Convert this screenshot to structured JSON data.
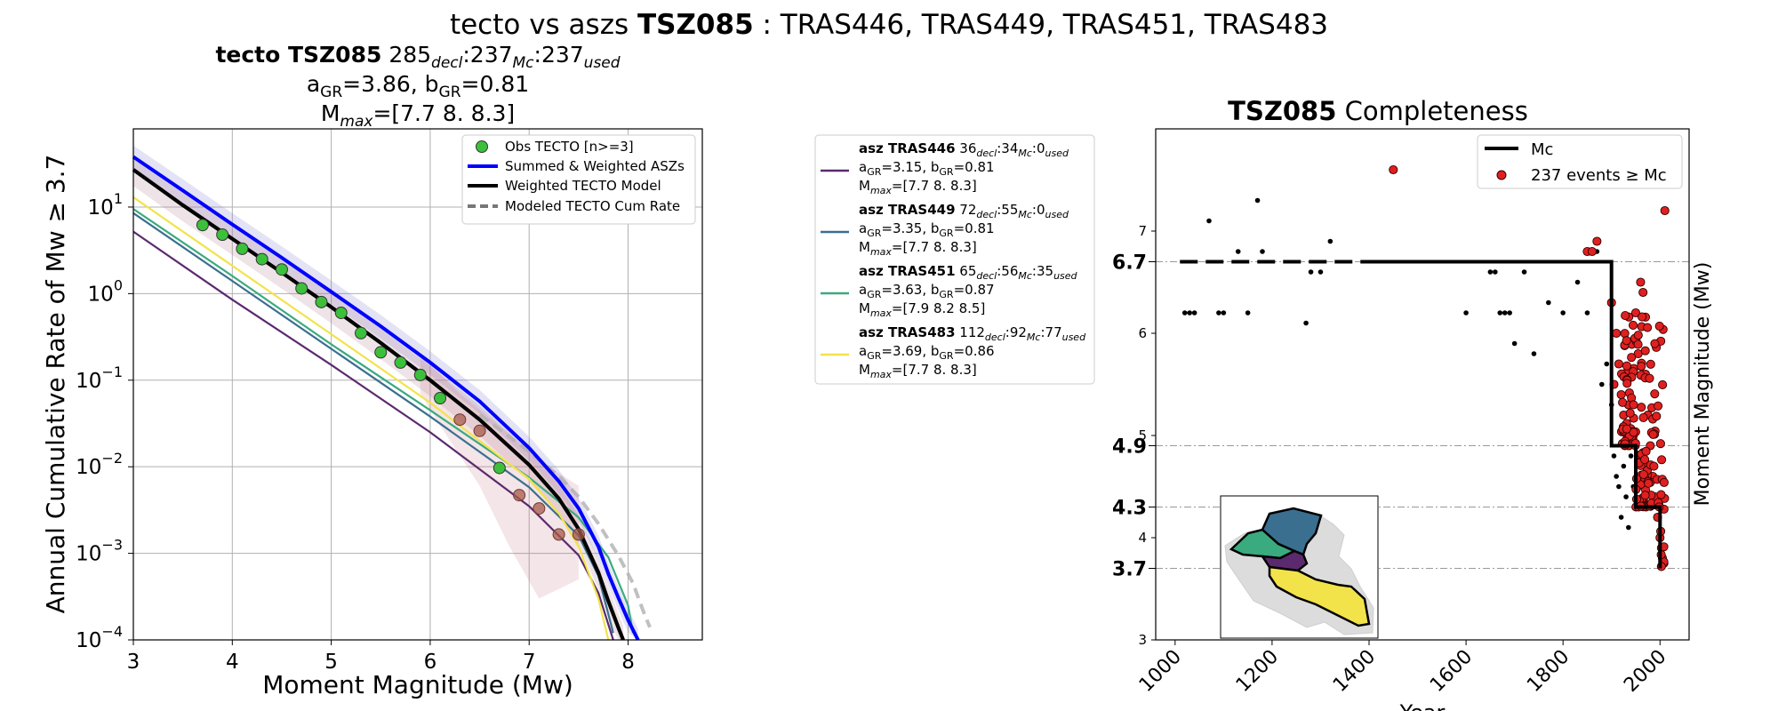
{
  "figure": {
    "title_prefix": "tecto vs aszs ",
    "title_zone": "TSZ085",
    "title_suffix": " : TRAS446, TRAS449, TRAS451, TRAS483"
  },
  "colors": {
    "obs": "#3cc03c",
    "summed": "#0000ff",
    "weighted": "#000000",
    "modeled": "#b0b0b0",
    "TRAS446": "#5b2a6e",
    "TRAS449": "#3a6f8f",
    "TRAS451": "#3aaa7f",
    "TRAS483": "#f2e34a",
    "events": "#e02020"
  },
  "chart_data": [
    {
      "type": "line",
      "title_lines": {
        "l1_bold": "tecto TSZ085",
        "l1_n": "285",
        "l1_s1": "decl",
        "l1_m": ":237",
        "l1_s2": "Mc",
        "l1_m2": ":237",
        "l1_s3": "used",
        "l2_a": "a",
        "l2_asub": "GR",
        "l2_aval": "=3.86,  b",
        "l2_bsub": "GR",
        "l2_bval": "=0.81",
        "l3_m": "M",
        "l3_msub": "max",
        "l3_val": "=[7.7 8.  8.3]"
      },
      "xlabel": "Moment Magnitude (Mw)",
      "ylabel": "Annual Cumulative Rate of Mw  ≥  3.7",
      "xlim": [
        3,
        8.75
      ],
      "ylim": [
        0.0001,
        80
      ],
      "yscale": "log",
      "xticks": [
        "3",
        "4",
        "5",
        "6",
        "7",
        "8"
      ],
      "yticks": [
        {
          "base": "10",
          "exp": "1",
          "v": 10
        },
        {
          "base": "10",
          "exp": "0",
          "v": 1
        },
        {
          "base": "10",
          "exp": "−1",
          "v": 0.1
        },
        {
          "base": "10",
          "exp": "−2",
          "v": 0.01
        },
        {
          "base": "10",
          "exp": "−3",
          "v": 0.001
        },
        {
          "base": "10",
          "exp": "−4",
          "v": 0.0001
        }
      ],
      "grid": true,
      "legend": {
        "placement": "top-right",
        "entries": [
          "Obs TECTO [n>=3]",
          "Summed & Weighted ASZs",
          "Weighted TECTO Model",
          "Modeled TECTO Cum Rate"
        ]
      },
      "observed_green": {
        "x": [
          3.7,
          3.9,
          4.1,
          4.3,
          4.5,
          4.7,
          4.9,
          5.1,
          5.3,
          5.5,
          5.7,
          5.9,
          6.1,
          6.7
        ],
        "y": [
          6.2,
          4.8,
          3.3,
          2.5,
          1.9,
          1.15,
          0.8,
          0.6,
          0.35,
          0.21,
          0.16,
          0.115,
          0.062,
          0.0097
        ]
      },
      "observed_brown": {
        "x": [
          6.3,
          6.5,
          6.9,
          7.1,
          7.3,
          7.5
        ],
        "y": [
          0.035,
          0.026,
          0.0047,
          0.0033,
          0.00165,
          0.00165
        ]
      },
      "series": [
        {
          "name": "Summed & Weighted ASZs",
          "key": "summed",
          "x": [
            3.0,
            3.5,
            4.0,
            4.5,
            5.0,
            5.5,
            6.0,
            6.5,
            7.0,
            7.3,
            7.5,
            7.7,
            7.8,
            7.9,
            8.0,
            8.1
          ],
          "y": [
            38,
            15.5,
            6.3,
            2.6,
            1.05,
            0.42,
            0.16,
            0.057,
            0.0165,
            0.0068,
            0.0033,
            0.0012,
            0.00058,
            0.00031,
            0.00017,
            0.0001
          ]
        },
        {
          "name": "Weighted TECTO Model",
          "key": "weighted",
          "x": [
            3.0,
            3.5,
            4.0,
            4.5,
            5.0,
            5.5,
            6.0,
            6.5,
            7.0,
            7.3,
            7.5,
            7.7,
            7.8,
            7.9,
            7.95
          ],
          "y": [
            27,
            10.5,
            4.3,
            1.75,
            0.7,
            0.27,
            0.1,
            0.035,
            0.0105,
            0.0043,
            0.0019,
            0.0006,
            0.00028,
            0.00014,
            0.0001
          ]
        },
        {
          "name": "Modeled TECTO Cum Rate",
          "key": "modeled",
          "x": [
            6.5,
            7.0,
            7.3,
            7.5,
            7.7,
            7.9,
            8.05,
            8.15,
            8.22
          ],
          "y": [
            0.04,
            0.015,
            0.0078,
            0.0045,
            0.0022,
            0.00095,
            0.00045,
            0.00022,
            0.00014
          ]
        },
        {
          "name": "TRAS446",
          "key": "TRAS446",
          "x": [
            3.0,
            4.0,
            5.0,
            6.0,
            7.0,
            7.5,
            7.7,
            7.85
          ],
          "y": [
            5.2,
            0.85,
            0.15,
            0.025,
            0.0035,
            0.00095,
            0.00035,
            0.0001
          ]
        },
        {
          "name": "TRAS449",
          "key": "TRAS449",
          "x": [
            3.0,
            4.0,
            5.0,
            6.0,
            7.0,
            7.5,
            7.7,
            7.85
          ],
          "y": [
            8.5,
            1.4,
            0.23,
            0.038,
            0.0058,
            0.0016,
            0.00055,
            0.00012
          ]
        },
        {
          "name": "TRAS451",
          "key": "TRAS451",
          "x": [
            3.0,
            4.0,
            5.0,
            6.0,
            7.0,
            7.5,
            7.8,
            8.0,
            8.05
          ],
          "y": [
            9.5,
            1.6,
            0.26,
            0.045,
            0.0075,
            0.0026,
            0.0009,
            0.00025,
            0.00012
          ]
        },
        {
          "name": "TRAS483",
          "key": "TRAS483",
          "x": [
            3.0,
            4.0,
            5.0,
            6.0,
            7.0,
            7.3,
            7.5,
            7.7,
            7.8
          ],
          "y": [
            13,
            2.1,
            0.34,
            0.055,
            0.0072,
            0.0029,
            0.0012,
            0.0003,
            0.0001
          ]
        }
      ]
    },
    {
      "type": "scatter",
      "title_bold": "TSZ085",
      "title_rest": " Completeness",
      "xlabel": "Year",
      "ylabel": "Moment Magnitude (Mw)",
      "xlim": [
        960,
        2060
      ],
      "ylim": [
        3,
        8.0
      ],
      "xticks": [
        "1000",
        "1200",
        "1400",
        "1600",
        "1800",
        "2000"
      ],
      "yticks_minor": [
        "3",
        "4",
        "5",
        "6",
        "7"
      ],
      "yticks_major": [
        "3.7",
        "4.3",
        "4.9",
        "6.7"
      ],
      "legend": {
        "placement": "top-right",
        "entries": [
          "Mc",
          "237 events  ≥  Mc"
        ]
      },
      "mc_steps": {
        "x": [
          1010,
          1900,
          1900,
          1950,
          1950,
          2000,
          2000
        ],
        "y": [
          6.7,
          6.7,
          4.9,
          4.9,
          4.3,
          4.3,
          3.7
        ]
      },
      "black_points": {
        "x": [
          1020,
          1030,
          1040,
          1070,
          1090,
          1100,
          1130,
          1150,
          1170,
          1180,
          1270,
          1280,
          1300,
          1320,
          1600,
          1650,
          1660,
          1670,
          1680,
          1690,
          1700,
          1720,
          1740,
          1770,
          1800,
          1830,
          1850,
          1870,
          1880,
          1890,
          1900,
          1905,
          1910,
          1915,
          1920,
          1925,
          1930,
          1935,
          1940,
          1945
        ],
        "y": [
          6.2,
          6.2,
          6.2,
          7.1,
          6.2,
          6.2,
          6.8,
          6.2,
          7.3,
          6.8,
          6.1,
          6.6,
          6.6,
          6.9,
          6.2,
          6.6,
          6.6,
          6.2,
          6.2,
          6.2,
          5.9,
          6.6,
          5.8,
          6.3,
          6.2,
          6.5,
          6.2,
          6.8,
          5.5,
          5.7,
          5.3,
          4.8,
          4.6,
          4.5,
          4.2,
          4.7,
          4.4,
          4.1,
          4.8,
          4.5
        ]
      },
      "red_points": {
        "x": [
          1450,
          1850,
          1860,
          1870,
          1900,
          1905,
          1910,
          1915,
          1920,
          1925,
          1930,
          1935,
          1940,
          1945,
          1950,
          1955,
          1960,
          1965,
          1970,
          1975,
          1980,
          1985,
          1990,
          1995,
          2000,
          2003,
          2005,
          2008,
          2010
        ],
        "y": [
          7.6,
          6.8,
          6.8,
          6.9,
          6.3,
          5.5,
          6.0,
          5.7,
          5.4,
          5.2,
          5.9,
          5.3,
          5.6,
          5.0,
          6.2,
          5.8,
          6.5,
          6.4,
          5.6,
          5.2,
          4.9,
          4.6,
          4.4,
          4.2,
          4.0,
          3.9,
          3.8,
          3.75,
          7.2
        ]
      },
      "red_dense_count": 237
    }
  ],
  "asz_legend": [
    {
      "key": "TRAS446",
      "name": "asz TRAS446",
      "n": " 36",
      "mc": ":34",
      "used": ":0",
      "a": "=3.15,  b",
      "b": "=0.81",
      "mmax": "=[7.7 8.  8.3]"
    },
    {
      "key": "TRAS449",
      "name": "asz TRAS449",
      "n": " 72",
      "mc": ":55",
      "used": ":0",
      "a": "=3.35,  b",
      "b": "=0.81",
      "mmax": "=[7.7 8.  8.3]"
    },
    {
      "key": "TRAS451",
      "name": "asz TRAS451",
      "n": " 65",
      "mc": ":56",
      "used": ":35",
      "a": "=3.63,  b",
      "b": "=0.87",
      "mmax": "=[7.9 8.2 8.5]"
    },
    {
      "key": "TRAS483",
      "name": "asz TRAS483",
      "n": " 112",
      "mc": ":92",
      "used": ":77",
      "a": "=3.69,  b",
      "b": "=0.86",
      "mmax": "=[7.7 8.  8.3]"
    }
  ],
  "sub": {
    "decl": "decl",
    "mc": "Mc",
    "used": "used",
    "gr": "GR",
    "max": "max",
    "a": "a",
    "m": "M"
  }
}
